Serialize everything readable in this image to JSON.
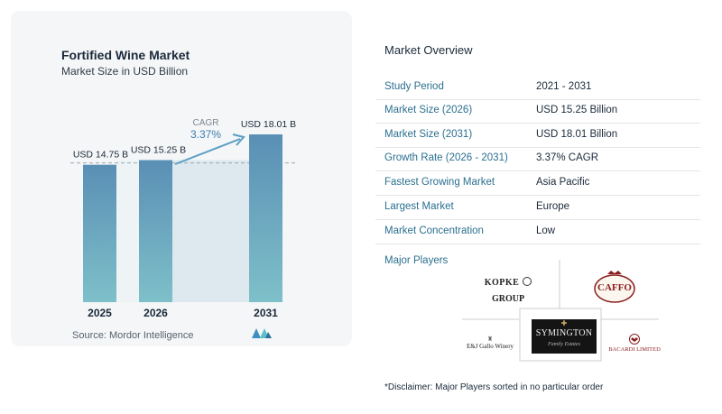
{
  "chart_data": {
    "type": "bar",
    "title": "Fortified Wine Market",
    "subtitle": "Market Size in USD Billion",
    "categories": [
      "2025",
      "2026",
      "2031"
    ],
    "values": [
      14.75,
      15.25,
      18.01
    ],
    "data_labels": [
      "USD 14.75 B",
      "USD 15.25 B",
      "USD 18.01 B"
    ],
    "cagr_label": "CAGR",
    "cagr_value": "3.37%",
    "ylim": [
      0,
      18.01
    ],
    "grid": false,
    "colors": {
      "bar_top": "#5a8fb5",
      "bar_bottom": "#7ec0c9",
      "band": "#dde8ef",
      "arrow": "#5a9ec4"
    }
  },
  "source": "Source:  Mordor Intelligence",
  "overview": {
    "title": "Market Overview",
    "rows": [
      {
        "label": "Study Period",
        "value": "2021 - 2031"
      },
      {
        "label": "Market Size (2026)",
        "value": "USD 15.25 Billion"
      },
      {
        "label": "Market Size (2031)",
        "value": "USD 18.01 Billion"
      },
      {
        "label": "Growth Rate (2026 - 2031)",
        "value": "3.37% CAGR"
      },
      {
        "label": "Fastest Growing Market",
        "value": "Asia Pacific"
      },
      {
        "label": "Largest Market",
        "value": "Europe"
      },
      {
        "label": "Market Concentration",
        "value": "Low"
      }
    ]
  },
  "players": {
    "title": "Major Players",
    "logos": {
      "kopke": "KOPKE",
      "kopke_group": "GROUP",
      "caffo": "CAFFO",
      "symington": "SYMINGTON",
      "symington_sub": "Family Estates",
      "gallo": "E&J Gallo Winery",
      "bacardi": "BACARDI LIMITED"
    }
  },
  "disclaimer": "*Disclaimer: Major Players sorted in no particular order"
}
